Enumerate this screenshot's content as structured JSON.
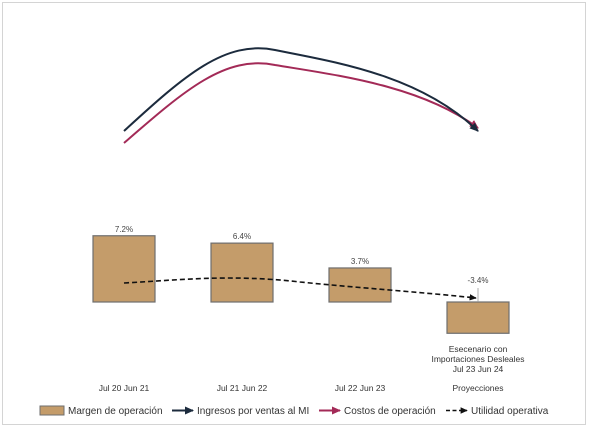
{
  "chart_data": {
    "type": "bar",
    "categories": [
      "Jul 20 Jun 21",
      "Jul 21 Jun 22",
      "Jul 22 Jun 23",
      "Proyecciones"
    ],
    "series": [
      {
        "name": "Margen de operación",
        "kind": "bar",
        "values": [
          7.2,
          6.4,
          3.7,
          -3.4
        ],
        "value_labels": [
          "7.2%",
          "6.4%",
          "3.7%",
          "-3.4%"
        ],
        "color": "#c49c6a",
        "edge_color": "#6e6e6e"
      },
      {
        "name": "Ingresos por ventas al MI",
        "kind": "line",
        "color": "#1c2b3d"
      },
      {
        "name": "Costos de operación",
        "kind": "line",
        "color": "#a32a57"
      },
      {
        "name": "Utilidad operativa",
        "kind": "line",
        "style": "dashed",
        "color": "#111111"
      }
    ],
    "annotation": [
      "Esecenario con",
      "Importaciones Desleales",
      "Jul 23 Jun 24"
    ],
    "legend_position": "bottom",
    "grid": false
  }
}
